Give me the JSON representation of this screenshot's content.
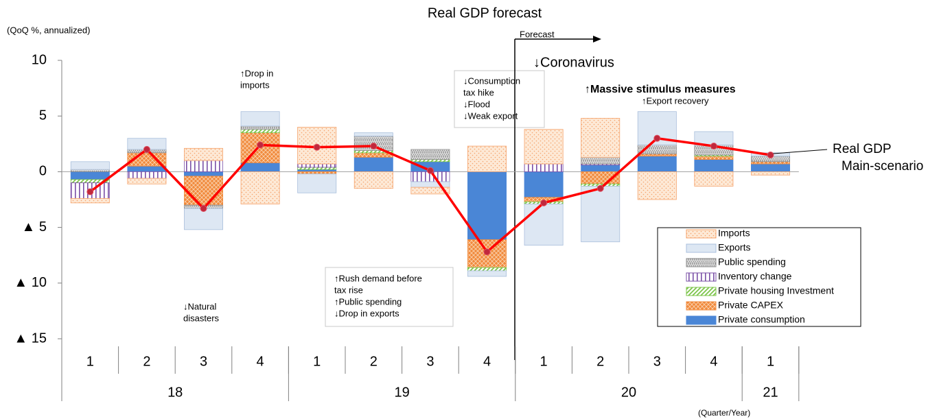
{
  "chart_data": {
    "type": "bar",
    "stacked": true,
    "title": "Real GDP forecast",
    "y_label": "(QoQ %, annualized)",
    "x_label": "(Quarter/Year)",
    "categories": [
      "1",
      "2",
      "3",
      "4",
      "1",
      "2",
      "3",
      "4",
      "1",
      "2",
      "3",
      "4",
      "1"
    ],
    "group_labels": [
      "18",
      "19",
      "20",
      "21"
    ],
    "group_sizes": [
      4,
      4,
      4,
      1
    ],
    "ylim": [
      -15,
      10
    ],
    "yticks": [
      {
        "value": -15,
        "label": "▲ 15"
      },
      {
        "value": -10,
        "label": "▲ 10"
      },
      {
        "value": -5,
        "label": "▲ 5"
      },
      0,
      5,
      10
    ],
    "series": [
      {
        "name": "Private consumption",
        "color": "#4a86d6",
        "pattern": "solid",
        "values": [
          -0.7,
          0.5,
          -0.4,
          0.8,
          0.2,
          1.3,
          0.9,
          -6.1,
          -2.3,
          0.6,
          1.4,
          1.1,
          0.7
        ]
      },
      {
        "name": "Private CAPEX",
        "color": "#f08a3c",
        "pattern": "cross",
        "values": [
          0,
          1.2,
          -2.6,
          2.7,
          -0.2,
          0.4,
          0,
          -2.5,
          -0.4,
          -1.1,
          0.2,
          0.3,
          0.2
        ]
      },
      {
        "name": "Private housing Investment",
        "color": "#7cc44a",
        "pattern": "diagonal",
        "values": [
          -0.3,
          0,
          0,
          0.3,
          0.2,
          0.2,
          0.2,
          -0.3,
          -0.2,
          -0.2,
          0,
          0.1,
          0
        ]
      },
      {
        "name": "Inventory change",
        "color": "#7a4fa6",
        "pattern": "vertical",
        "values": [
          -1.4,
          -0.6,
          1.0,
          0,
          0.3,
          0,
          -0.9,
          0,
          0.7,
          0.1,
          0,
          0,
          0
        ]
      },
      {
        "name": "Public spending",
        "color": "#8c8c8c",
        "pattern": "dense-dots",
        "values": [
          0.2,
          0.3,
          -0.3,
          0.3,
          0,
          1.3,
          0.9,
          0,
          0,
          0.6,
          0.8,
          0.9,
          0.5
        ]
      },
      {
        "name": "Exports",
        "color": "#a9bfdc",
        "pattern": "light",
        "values": [
          0.7,
          1.0,
          -1.9,
          1.3,
          -1.7,
          0.3,
          -0.5,
          -0.5,
          -3.7,
          -5.0,
          3.0,
          1.2,
          0.3
        ]
      },
      {
        "name": "Imports",
        "color": "#f5a26a",
        "pattern": "dots",
        "values": [
          -0.4,
          -0.5,
          1.1,
          -2.9,
          3.3,
          -1.5,
          -0.6,
          2.3,
          3.1,
          3.5,
          -2.5,
          -1.3,
          -0.3
        ]
      }
    ],
    "line_series": {
      "label_lines": [
        "Real GDP",
        "Main-scenario"
      ],
      "color": "#ff0000",
      "marker_color": "#c0283c",
      "values": [
        -1.8,
        2.0,
        -3.3,
        2.4,
        2.2,
        2.3,
        0.1,
        -7.2,
        -2.8,
        -1.5,
        3.0,
        2.3,
        1.5
      ]
    },
    "legend": "lower right",
    "annotations": [
      {
        "lines": [
          "↑Drop in",
          "imports"
        ],
        "color": "#44546a"
      },
      {
        "lines": [
          "↓Natural",
          "disasters"
        ],
        "color": "#44546a"
      },
      {
        "lines": [
          "↑Rush demand before",
          "tax rise",
          "↑Public spending",
          "↓Drop in exports"
        ],
        "color": "#44546a"
      },
      {
        "lines": [
          "↓Consumption",
          "tax hike",
          "↓Flood",
          "↓Weak export"
        ],
        "color": "#44546a"
      },
      {
        "lines": [
          "↓Coronavirus"
        ],
        "color": "#ff0000"
      },
      {
        "lines": [
          "↑Massive stimulus measures"
        ],
        "color": "#2f4f8a"
      },
      {
        "lines": [
          "↑Export recovery"
        ],
        "color": "#2f4f8a"
      },
      {
        "lines": [
          "Forecast"
        ],
        "color": "#000000"
      }
    ]
  }
}
